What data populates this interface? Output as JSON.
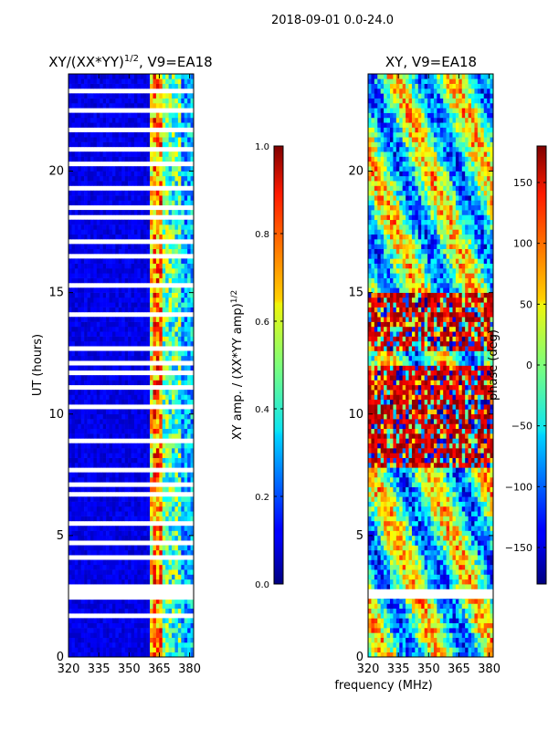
{
  "suptitle": "2018-09-01 0.0-24.0",
  "chart_data": [
    {
      "type": "heatmap",
      "title_main": "XY/(XX*YY)",
      "title_exp": "1/2",
      "title_suffix": ", V9=EA18",
      "xlabel": "",
      "ylabel": "UT (hours)",
      "xlim": [
        320,
        382
      ],
      "ylim": [
        0,
        24
      ],
      "xticks": [
        320,
        335,
        350,
        365,
        380
      ],
      "yticks": [
        0,
        5,
        10,
        15,
        20
      ],
      "colorbar": {
        "label_main": "XY amp. / (XX*YY amp)",
        "label_exp": "1/2",
        "min": 0.0,
        "max": 1.0,
        "ticks": [
          "0.0",
          "0.2",
          "0.4",
          "0.6",
          "0.8",
          "1.0"
        ],
        "tick_values": [
          0.0,
          0.2,
          0.4,
          0.6,
          0.8,
          1.0
        ]
      }
    },
    {
      "type": "heatmap",
      "title_main": "XY, V9=EA18",
      "xlabel": "frequency (MHz)",
      "ylabel": "",
      "xlim": [
        320,
        382
      ],
      "ylim": [
        0,
        24
      ],
      "xticks": [
        320,
        335,
        350,
        365,
        380
      ],
      "yticks": [
        0,
        5,
        10,
        15,
        20
      ],
      "colorbar": {
        "label_main": "phase (deg)",
        "min": -180,
        "max": 180,
        "ticks": [
          "−150",
          "−100",
          "−50",
          "0",
          "50",
          "100",
          "150"
        ],
        "tick_values": [
          -150,
          -100,
          -50,
          0,
          50,
          100,
          150
        ]
      }
    }
  ]
}
